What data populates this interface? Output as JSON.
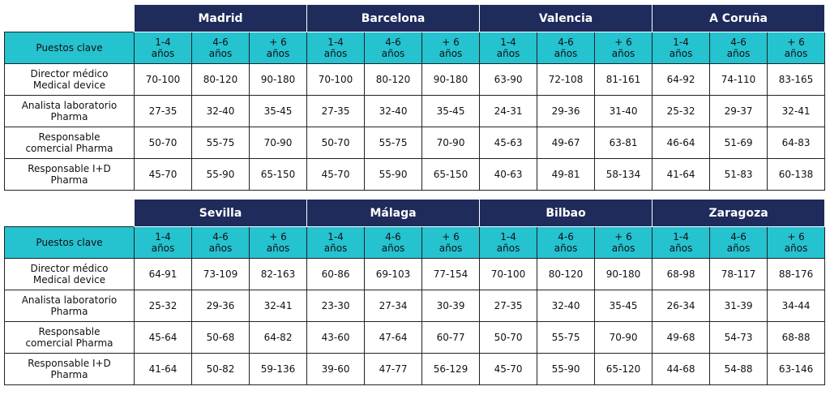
{
  "tables": [
    {
      "corner": "Puestos clave",
      "groups": [
        {
          "city": "Madrid",
          "columns": [
            "1-4\naños",
            "4-6\naños",
            "+ 6\naños"
          ]
        },
        {
          "city": "Barcelona",
          "columns": [
            "1-4\naños",
            "4-6\naños",
            "+ 6\naños"
          ]
        },
        {
          "city": "Valencia",
          "columns": [
            "1-4\naños",
            "4-6\naños",
            "+ 6\naños"
          ]
        },
        {
          "city": "A Coruña",
          "columns": [
            "1-4\naños",
            "4-6\naños",
            "+ 6\naños"
          ]
        }
      ],
      "rows": [
        {
          "role": "Director médico\nMedical device",
          "values": [
            "70-100",
            "80-120",
            "90-180",
            "70-100",
            "80-120",
            "90-180",
            "63-90",
            "72-108",
            "81-161",
            "64-92",
            "74-110",
            "83-165"
          ]
        },
        {
          "role": "Analista laboratorio\nPharma",
          "values": [
            "27-35",
            "32-40",
            "35-45",
            "27-35",
            "32-40",
            "35-45",
            "24-31",
            "29-36",
            "31-40",
            "25-32",
            "29-37",
            "32-41"
          ]
        },
        {
          "role": "Responsable\ncomercial Pharma",
          "values": [
            "50-70",
            "55-75",
            "70-90",
            "50-70",
            "55-75",
            "70-90",
            "45-63",
            "49-67",
            "63-81",
            "46-64",
            "51-69",
            "64-83"
          ]
        },
        {
          "role": "Responsable I+D\nPharma",
          "values": [
            "45-70",
            "55-90",
            "65-150",
            "45-70",
            "55-90",
            "65-150",
            "40-63",
            "49-81",
            "58-134",
            "41-64",
            "51-83",
            "60-138"
          ]
        }
      ]
    },
    {
      "corner": "Puestos clave",
      "groups": [
        {
          "city": "Sevilla",
          "columns": [
            "1-4\naños",
            "4-6\naños",
            "+ 6\naños"
          ]
        },
        {
          "city": "Málaga",
          "columns": [
            "1-4\naños",
            "4-6\naños",
            "+ 6\naños"
          ]
        },
        {
          "city": "Bilbao",
          "columns": [
            "1-4\naños",
            "4-6\naños",
            "+ 6\naños"
          ]
        },
        {
          "city": "Zaragoza",
          "columns": [
            "1-4\naños",
            "4-6\naños",
            "+ 6\naños"
          ]
        }
      ],
      "rows": [
        {
          "role": "Director médico\nMedical device",
          "values": [
            "64-91",
            "73-109",
            "82-163",
            "60-86",
            "69-103",
            "77-154",
            "70-100",
            "80-120",
            "90-180",
            "68-98",
            "78-117",
            "88-176"
          ]
        },
        {
          "role": "Analista laboratorio\nPharma",
          "values": [
            "25-32",
            "29-36",
            "32-41",
            "23-30",
            "27-34",
            "30-39",
            "27-35",
            "32-40",
            "35-45",
            "26-34",
            "31-39",
            "34-44"
          ]
        },
        {
          "role": "Responsable\ncomercial Pharma",
          "values": [
            "45-64",
            "50-68",
            "64-82",
            "43-60",
            "47-64",
            "60-77",
            "50-70",
            "55-75",
            "70-90",
            "49-68",
            "54-73",
            "68-88"
          ]
        },
        {
          "role": "Responsable I+D\nPharma",
          "values": [
            "41-64",
            "50-82",
            "59-136",
            "39-60",
            "47-77",
            "56-129",
            "45-70",
            "55-90",
            "65-120",
            "44-68",
            "54-88",
            "63-146"
          ]
        }
      ]
    }
  ]
}
